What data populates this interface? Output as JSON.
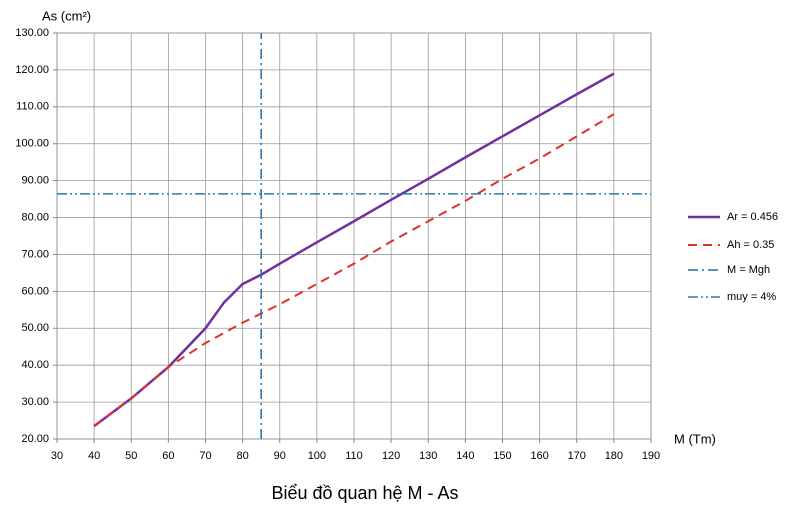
{
  "chart_data": {
    "type": "line",
    "title": "Biểu đồ quan hệ M - As",
    "y_label": "As (cm²)",
    "x_label": "M (Tm)",
    "xlim": [
      30,
      190
    ],
    "ylim": [
      20,
      130
    ],
    "xticks": [
      30,
      40,
      50,
      60,
      70,
      80,
      90,
      100,
      110,
      120,
      130,
      140,
      150,
      160,
      170,
      180,
      190
    ],
    "yticks": [
      {
        "value": 20,
        "label": "20.00"
      },
      {
        "value": 30,
        "label": "30.00"
      },
      {
        "value": 40,
        "label": "40.00"
      },
      {
        "value": 50,
        "label": "50.00"
      },
      {
        "value": 60,
        "label": "60.00"
      },
      {
        "value": 70,
        "label": "70.00"
      },
      {
        "value": 80,
        "label": "80.00"
      },
      {
        "value": 90,
        "label": "90.00"
      },
      {
        "value": 100,
        "label": "100.00"
      },
      {
        "value": 110,
        "label": "110.00"
      },
      {
        "value": 120,
        "label": "120.00"
      },
      {
        "value": 130,
        "label": "130.00"
      }
    ],
    "grid": true,
    "legend": "right",
    "series": [
      {
        "name": "Ar = 0.456",
        "color": "#7030a0",
        "dash": "none",
        "width": 2.5,
        "x": [
          40,
          50,
          60,
          70,
          75,
          80,
          85,
          90,
          100,
          110,
          120,
          130,
          140,
          150,
          160,
          170,
          180
        ],
        "values": [
          23.5,
          31,
          39.5,
          50,
          57,
          62,
          64.5,
          67.5,
          73.3,
          79,
          84.8,
          90.5,
          96.3,
          102,
          107.7,
          113.4,
          119
        ]
      },
      {
        "name": "Ah = 0.35",
        "color": "#e0302c",
        "dash": "9 6",
        "width": 2,
        "x": [
          40,
          50,
          60,
          70,
          80,
          90,
          100,
          110,
          120,
          130,
          140,
          150,
          160,
          170,
          180
        ],
        "values": [
          23.5,
          31,
          39.5,
          46,
          51.5,
          56.5,
          62,
          67.5,
          73.5,
          79,
          84.5,
          90.5,
          96,
          102,
          108
        ]
      },
      {
        "name": "M = Mgh",
        "color": "#1f6fb0",
        "dash": "10 4 2 4",
        "width": 1.5,
        "x": [
          85,
          85
        ],
        "values": [
          20,
          130
        ]
      },
      {
        "name": "muy = 4%",
        "color": "#2a7ab0",
        "dash": "10 3 2 3 2 3",
        "width": 1.5,
        "x": [
          30,
          190
        ],
        "values": [
          86.4,
          86.4
        ]
      }
    ]
  }
}
